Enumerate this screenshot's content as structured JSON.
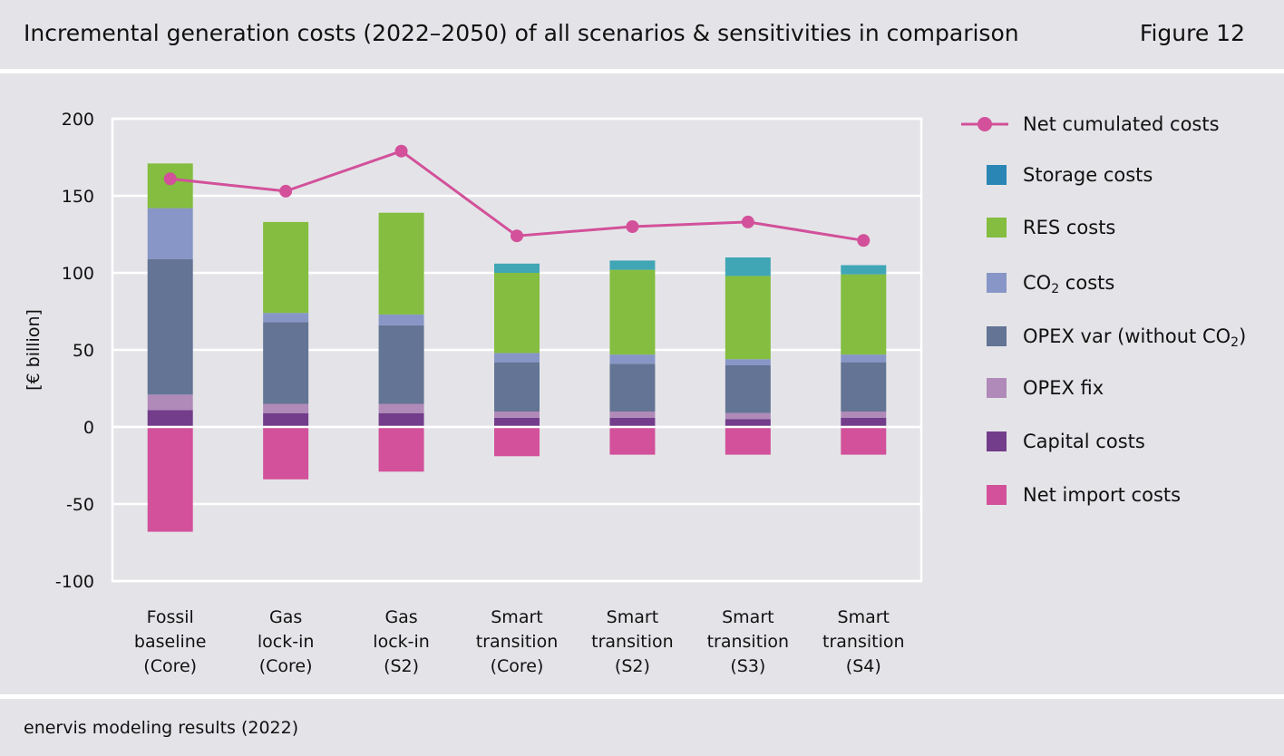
{
  "header": {
    "title": "Incremental generation costs (2022–2050) of all scenarios & sensitivities in comparison",
    "figure": "Figure 12"
  },
  "footer": {
    "source": "enervis modeling results (2022)"
  },
  "colors": {
    "capital": "#733d8b",
    "opex_fix": "#b08ab8",
    "opex_var": "#637494",
    "co2": "#8796c6",
    "res": "#84bd3f",
    "storage": "#40a6b6",
    "storage_legend": "#2a86b4",
    "import": "#d2519a",
    "line": "#d2519a"
  },
  "legend": {
    "net": "Net cumulated costs",
    "storage": "Storage costs",
    "res": "RES costs",
    "co2_prefix": "CO",
    "co2_sub": "2",
    "co2_suffix": " costs",
    "opexvar_prefix": "OPEX var (without CO",
    "opexvar_sub": "2",
    "opexvar_suffix": ")",
    "opexfix": "OPEX fix",
    "capital": "Capital costs",
    "import": "Net import costs"
  },
  "chart_data": {
    "type": "bar",
    "stacked": true,
    "ylabel": "[€ billion]",
    "ylim": [
      -100,
      200
    ],
    "yticks": [
      200,
      150,
      100,
      50,
      0,
      -50,
      -100
    ],
    "grid": true,
    "legend_position": "right",
    "categories": [
      [
        "Fossil",
        "baseline",
        "(Core)"
      ],
      [
        "Gas",
        "lock-in",
        "(Core)"
      ],
      [
        "Gas",
        "lock-in",
        "(S2)"
      ],
      [
        "Smart",
        "transition",
        "(Core)"
      ],
      [
        "Smart",
        "transition",
        "(S2)"
      ],
      [
        "Smart",
        "transition",
        "(S3)"
      ],
      [
        "Smart",
        "transition",
        "(S4)"
      ]
    ],
    "series": [
      {
        "name": "Capital costs",
        "key": "capital",
        "values": [
          11,
          9,
          9,
          6,
          6,
          5,
          6
        ]
      },
      {
        "name": "OPEX fix",
        "key": "opex_fix",
        "values": [
          10,
          6,
          6,
          4,
          4,
          4,
          4
        ]
      },
      {
        "name": "OPEX var (without CO2)",
        "key": "opex_var",
        "values": [
          88,
          53,
          51,
          32,
          31,
          31,
          32
        ]
      },
      {
        "name": "CO2 costs",
        "key": "co2",
        "values": [
          33,
          6,
          7,
          6,
          6,
          4,
          5
        ]
      },
      {
        "name": "RES costs",
        "key": "res",
        "values": [
          29,
          59,
          66,
          52,
          55,
          54,
          52
        ]
      },
      {
        "name": "Storage costs",
        "key": "storage",
        "values": [
          0,
          0,
          0,
          6,
          6,
          12,
          6
        ]
      },
      {
        "name": "Net import costs",
        "key": "import",
        "values": [
          -68,
          -34,
          -29,
          -19,
          -18,
          -18,
          -18
        ]
      }
    ],
    "line": {
      "name": "Net cumulated costs",
      "values": [
        161,
        153,
        179,
        124,
        130,
        133,
        121
      ]
    }
  }
}
